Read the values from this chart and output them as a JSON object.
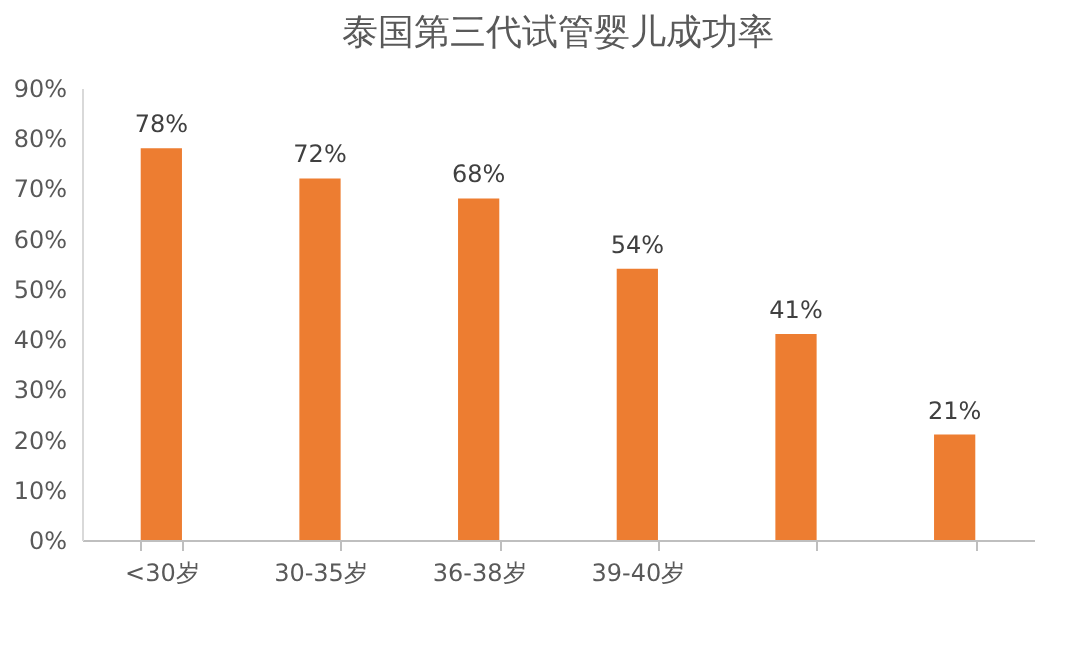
{
  "chart_data": {
    "type": "bar",
    "title": "泰国第三代试管婴儿成功率",
    "categories": [
      "<30岁",
      "30-35岁",
      "36-38岁",
      "39-40岁",
      null,
      null
    ],
    "values": [
      78,
      72,
      68,
      54,
      41,
      21
    ],
    "value_labels": [
      "78%",
      "72%",
      "68%",
      "54%",
      "41%",
      "21%"
    ],
    "color": "#ed7d31",
    "ylim": [
      0,
      90
    ],
    "yticks": [
      {
        "value": 0,
        "label": "0%"
      },
      {
        "value": 10,
        "label": "10%"
      },
      {
        "value": 20,
        "label": "20%"
      },
      {
        "value": 30,
        "label": "30%"
      },
      {
        "value": 40,
        "label": "40%"
      },
      {
        "value": 50,
        "label": "50%"
      },
      {
        "value": 60,
        "label": "60%"
      },
      {
        "value": 70,
        "label": "70%"
      },
      {
        "value": 80,
        "label": "80%"
      },
      {
        "value": 90,
        "label": "90%"
      }
    ]
  }
}
